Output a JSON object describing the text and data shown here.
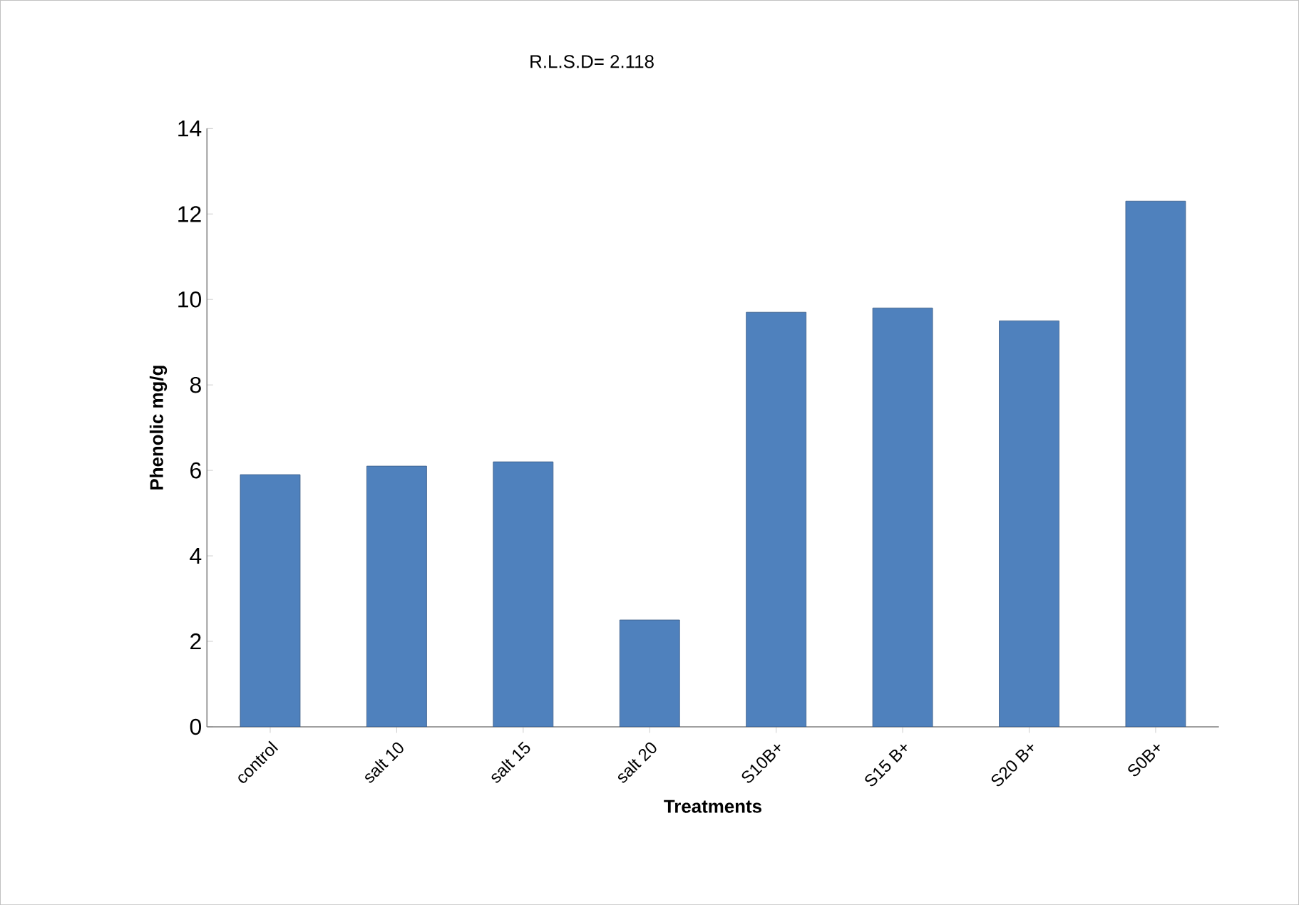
{
  "chart_data": {
    "type": "bar",
    "title": "R.L.S.D= 2.118",
    "xlabel": "Treatments",
    "ylabel": "Phenolic mg/g",
    "categories": [
      "control",
      "salt 10",
      "salt 15",
      "salt 20",
      "S10B+",
      "S15 B+",
      "S20 B+",
      "S0B+"
    ],
    "values": [
      5.9,
      6.1,
      6.2,
      2.5,
      9.7,
      9.8,
      9.5,
      12.3
    ],
    "color": "#4f81bd",
    "ylim": [
      0,
      14
    ],
    "yticks": [
      0,
      2,
      4,
      6,
      8,
      10,
      12,
      14
    ],
    "grid": false
  }
}
